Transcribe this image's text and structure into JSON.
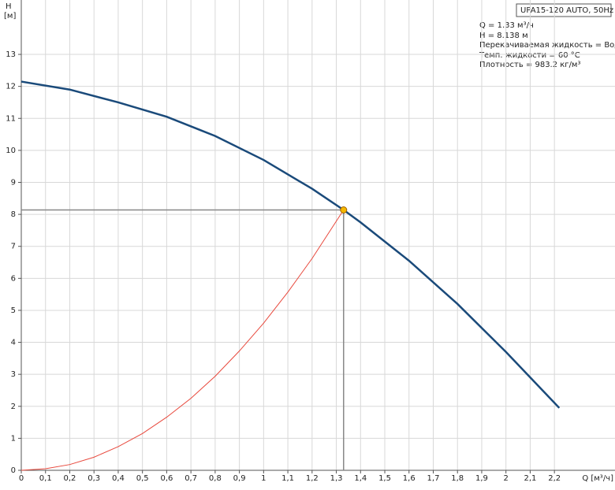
{
  "chart_data": {
    "type": "line",
    "title": "UPA15-120 AUTO, 50Hz",
    "info": [
      "Q = 1.33 м³/ч",
      "H = 8.138 м",
      "Перекачиваемая жидкость = Вода",
      "Темп. жидкости = 60 °C",
      "Плотность = 983.2 кг/м³"
    ],
    "x_label": "Q [м³/ч]",
    "y_label": [
      "H",
      "[м]"
    ],
    "xlim": [
      0,
      2.45
    ],
    "ylim": [
      0,
      14.7
    ],
    "xticks": [
      0,
      {
        "value": 0.1,
        "label": "0,1"
      },
      {
        "value": 0.2,
        "label": "0,2"
      },
      {
        "value": 0.3,
        "label": "0,3"
      },
      {
        "value": 0.4,
        "label": "0,4"
      },
      {
        "value": 0.5,
        "label": "0,5"
      },
      {
        "value": 0.6,
        "label": "0,6"
      },
      {
        "value": 0.7,
        "label": "0,7"
      },
      {
        "value": 0.8,
        "label": "0,8"
      },
      {
        "value": 0.9,
        "label": "0,9"
      },
      1,
      {
        "value": 1.1,
        "label": "1,1"
      },
      {
        "value": 1.2,
        "label": "1,2"
      },
      {
        "value": 1.3,
        "label": "1,3"
      },
      {
        "value": 1.4,
        "label": "1,4"
      },
      {
        "value": 1.5,
        "label": "1,5"
      },
      {
        "value": 1.6,
        "label": "1,6"
      },
      {
        "value": 1.7,
        "label": "1,7"
      },
      {
        "value": 1.8,
        "label": "1,8"
      },
      {
        "value": 1.9,
        "label": "1,9"
      },
      2,
      {
        "value": 2.1,
        "label": "2,1"
      },
      {
        "value": 2.2,
        "label": "2,2"
      }
    ],
    "yticks": [
      0,
      1,
      2,
      3,
      4,
      5,
      6,
      7,
      8,
      9,
      10,
      11,
      12,
      13
    ],
    "grid": true,
    "series": [
      {
        "color": "#1a4a7a",
        "x": [
          0,
          0.2,
          0.4,
          0.6,
          0.8,
          1.0,
          1.2,
          1.33,
          1.4,
          1.6,
          1.8,
          2.0,
          2.22
        ],
        "values": [
          12.15,
          11.9,
          11.5,
          11.05,
          10.45,
          9.7,
          8.8,
          8.138,
          7.75,
          6.55,
          5.2,
          3.7,
          1.95
        ]
      },
      {
        "color": "#e8483c",
        "x": [
          0,
          0.1,
          0.2,
          0.3,
          0.4,
          0.5,
          0.6,
          0.7,
          0.8,
          0.9,
          1.0,
          1.1,
          1.2,
          1.33
        ],
        "values": [
          0,
          0.05,
          0.18,
          0.41,
          0.74,
          1.15,
          1.66,
          2.25,
          2.94,
          3.73,
          4.6,
          5.57,
          6.62,
          8.138
        ]
      }
    ],
    "operating_point": {
      "x": 1.33,
      "y": 8.138,
      "color": "#f5b800"
    }
  }
}
